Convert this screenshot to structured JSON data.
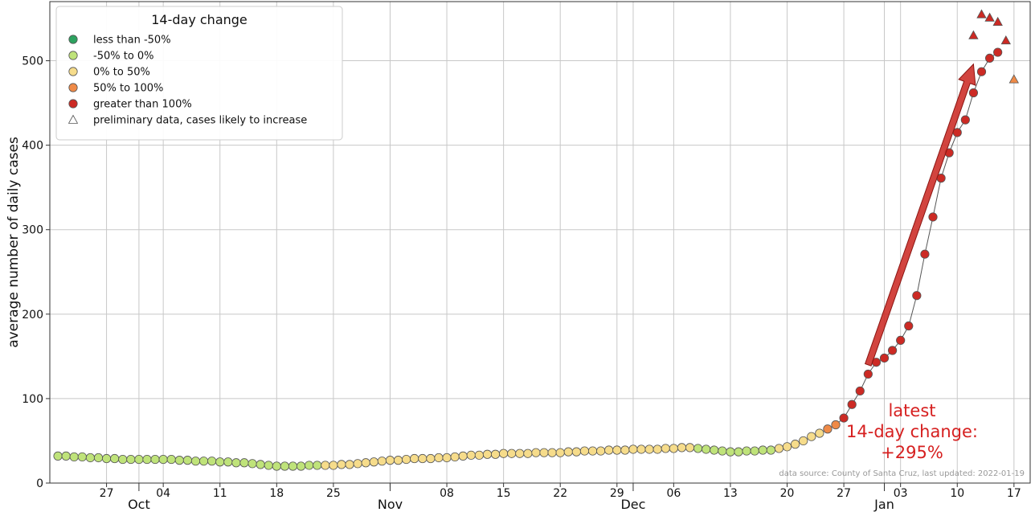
{
  "chart_data": {
    "type": "scatter",
    "ylabel": "average number of daily cases",
    "ylim": [
      0,
      570
    ],
    "yticks": [
      0,
      100,
      200,
      300,
      400,
      500
    ],
    "xlim": [
      "2021-09-20",
      "2022-01-19"
    ],
    "grid": true,
    "x_day_ticks": [
      {
        "date": "2021-09-27",
        "label": "27"
      },
      {
        "date": "2021-10-04",
        "label": "04"
      },
      {
        "date": "2021-10-11",
        "label": "11"
      },
      {
        "date": "2021-10-18",
        "label": "18"
      },
      {
        "date": "2021-10-25",
        "label": "25"
      },
      {
        "date": "2021-11-01",
        "label": ""
      },
      {
        "date": "2021-11-08",
        "label": "08"
      },
      {
        "date": "2021-11-15",
        "label": "15"
      },
      {
        "date": "2021-11-22",
        "label": "22"
      },
      {
        "date": "2021-11-29",
        "label": "29"
      },
      {
        "date": "2021-12-06",
        "label": "06"
      },
      {
        "date": "2021-12-13",
        "label": "13"
      },
      {
        "date": "2021-12-20",
        "label": "20"
      },
      {
        "date": "2021-12-27",
        "label": "27"
      },
      {
        "date": "2022-01-03",
        "label": "03"
      },
      {
        "date": "2022-01-10",
        "label": "10"
      },
      {
        "date": "2022-01-17",
        "label": "17"
      }
    ],
    "x_month_ticks": [
      {
        "date": "2021-10-01",
        "label": "Oct"
      },
      {
        "date": "2021-11-01",
        "label": "Nov"
      },
      {
        "date": "2021-12-01",
        "label": "Dec"
      },
      {
        "date": "2022-01-01",
        "label": "Jan"
      }
    ],
    "legend": {
      "title": "14-day change",
      "placement": "top-left",
      "entries": [
        {
          "label": "less than -50%",
          "marker": "circle",
          "color": "#2ca25f"
        },
        {
          "label": "-50% to 0%",
          "marker": "circle",
          "color": "#bfe37a"
        },
        {
          "label": "0% to 50%",
          "marker": "circle",
          "color": "#f6dc8b"
        },
        {
          "label": "50% to 100%",
          "marker": "circle",
          "color": "#ef8a47"
        },
        {
          "label": "greater than 100%",
          "marker": "circle",
          "color": "#cc2a24"
        },
        {
          "label": "preliminary data, cases likely to increase",
          "marker": "triangle",
          "color": "#ffffff"
        }
      ]
    },
    "points_start_date": "2021-09-21",
    "values": [
      32,
      32,
      31,
      31,
      30,
      30,
      29,
      29,
      28,
      28,
      28,
      28,
      28,
      28,
      28,
      27,
      27,
      26,
      26,
      26,
      25,
      25,
      24,
      24,
      23,
      22,
      21,
      20,
      20,
      20,
      20,
      21,
      21,
      21,
      21,
      22,
      22,
      23,
      24,
      25,
      26,
      27,
      27,
      28,
      29,
      29,
      29,
      30,
      30,
      31,
      32,
      33,
      33,
      34,
      34,
      35,
      35,
      35,
      35,
      36,
      36,
      36,
      36,
      37,
      37,
      38,
      38,
      38,
      39,
      39,
      39,
      40,
      40,
      40,
      40,
      41,
      41,
      42,
      42,
      41,
      40,
      39,
      38,
      37,
      37,
      38,
      38,
      39,
      39,
      41,
      43,
      46,
      50,
      55,
      59,
      64,
      69,
      77,
      93,
      109,
      129,
      143,
      148,
      157,
      169,
      186,
      222,
      271,
      315,
      361,
      391,
      415,
      430,
      462,
      487,
      503,
      510
    ],
    "categories": [
      "g",
      "g",
      "g",
      "g",
      "g",
      "g",
      "g",
      "g",
      "g",
      "g",
      "g",
      "g",
      "g",
      "g",
      "g",
      "g",
      "g",
      "g",
      "g",
      "g",
      "g",
      "g",
      "g",
      "g",
      "g",
      "g",
      "g",
      "g",
      "g",
      "g",
      "g",
      "g",
      "g",
      "y",
      "y",
      "y",
      "y",
      "y",
      "y",
      "y",
      "y",
      "y",
      "y",
      "y",
      "y",
      "y",
      "y",
      "y",
      "y",
      "y",
      "y",
      "y",
      "y",
      "y",
      "y",
      "y",
      "y",
      "y",
      "y",
      "y",
      "y",
      "y",
      "y",
      "y",
      "y",
      "y",
      "y",
      "y",
      "y",
      "y",
      "y",
      "y",
      "y",
      "y",
      "y",
      "y",
      "y",
      "y",
      "y",
      "g",
      "g",
      "g",
      "g",
      "g",
      "g",
      "g",
      "g",
      "g",
      "g",
      "y",
      "y",
      "y",
      "y",
      "y",
      "y",
      "o",
      "o",
      "r",
      "r",
      "r",
      "r",
      "r",
      "r",
      "r",
      "r",
      "r",
      "r",
      "r",
      "r",
      "r",
      "r",
      "r",
      "r",
      "r",
      "r",
      "r",
      "r"
    ],
    "preliminary": [
      {
        "date": "2022-01-12",
        "value": 530,
        "category": "r"
      },
      {
        "date": "2022-01-13",
        "value": 555,
        "category": "r"
      },
      {
        "date": "2022-01-14",
        "value": 551,
        "category": "r"
      },
      {
        "date": "2022-01-15",
        "value": 546,
        "category": "r"
      },
      {
        "date": "2022-01-16",
        "value": 524,
        "category": "r"
      },
      {
        "date": "2022-01-17",
        "value": 478,
        "category": "o"
      }
    ],
    "category_colors": {
      "g": "#bfe37a",
      "y": "#f6dc8b",
      "o": "#ef8a47",
      "r": "#cc2a24"
    },
    "arrow": {
      "from": {
        "date": "2021-12-30",
        "value": 140
      },
      "to": {
        "date": "2022-01-12",
        "value": 496
      },
      "color": "#cc2a24"
    },
    "annotation": [
      "latest",
      "14-day change:",
      "+295%"
    ],
    "annotation_color": "#d62020",
    "source_note": "data source: County of Santa Cruz, last updated: 2022-01-19"
  }
}
